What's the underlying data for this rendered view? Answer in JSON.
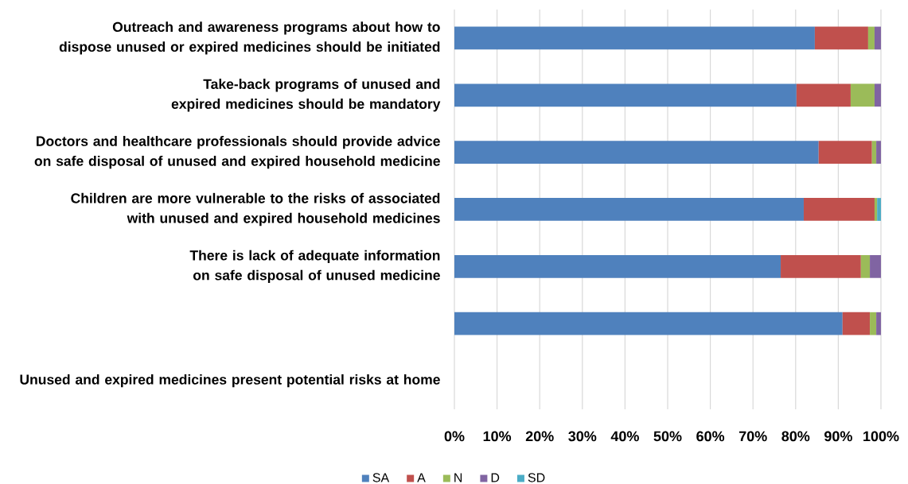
{
  "chart_data": {
    "type": "bar",
    "orientation": "horizontal",
    "stacked": true,
    "categories": [
      "Outreach and awareness programs about how to dispose unused or expired medicines should be initiated",
      "Take-back programs of unused and expired medicines should be mandatory",
      "Doctors and healthcare professionals should provide advice on safe disposal of unused and expired household medicine",
      "Children are more vulnerable to the risks of associated with unused and expired household medicines",
      "There is lack of adequate information on safe disposal of unused medicine",
      null,
      "Unused and expired medicines present potential risks at home"
    ],
    "series": [
      {
        "name": "SA",
        "color": "#4f81bd",
        "values": [
          84.5,
          80.2,
          85.4,
          81.9,
          76.5,
          91.0,
          null
        ]
      },
      {
        "name": "A",
        "color": "#c0504d",
        "values": [
          12.5,
          12.7,
          12.5,
          16.6,
          18.8,
          6.4,
          null
        ]
      },
      {
        "name": "N",
        "color": "#9bbb59",
        "values": [
          1.5,
          5.6,
          1.0,
          0.6,
          2.1,
          1.5,
          null
        ]
      },
      {
        "name": "D",
        "color": "#8064a2",
        "values": [
          1.5,
          1.5,
          1.1,
          null,
          2.6,
          1.1,
          null
        ]
      },
      {
        "name": "SD",
        "color": "#4bacc6",
        "values": [
          null,
          null,
          null,
          0.9,
          null,
          null,
          null
        ]
      }
    ],
    "xlim": [
      0,
      100
    ],
    "xticks": [
      {
        "value": 0,
        "label": "0%"
      },
      {
        "value": 10,
        "label": "10%"
      },
      {
        "value": 20,
        "label": "20%"
      },
      {
        "value": 30,
        "label": "30%"
      },
      {
        "value": 40,
        "label": "40%"
      },
      {
        "value": 50,
        "label": "50%"
      },
      {
        "value": 60,
        "label": "60%"
      },
      {
        "value": 70,
        "label": "70%"
      },
      {
        "value": 80,
        "label": "80%"
      },
      {
        "value": 90,
        "label": "90%"
      },
      {
        "value": 100,
        "label": "100%"
      }
    ],
    "grid": "x",
    "legend": "bottom"
  }
}
